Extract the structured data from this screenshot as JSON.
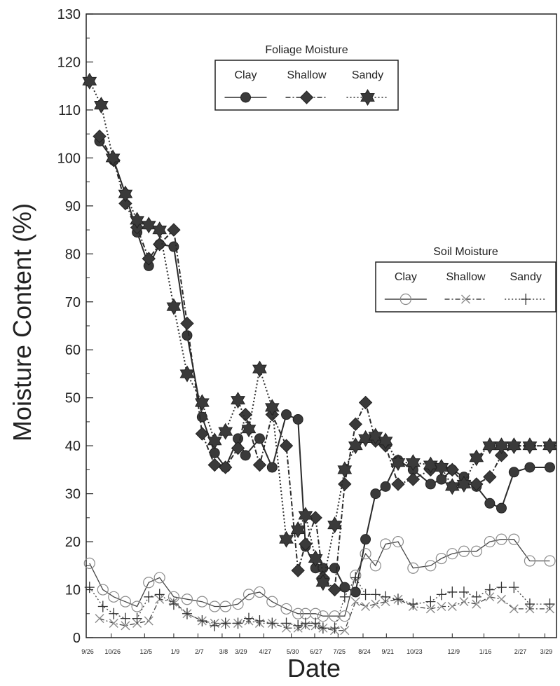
{
  "chart_data": {
    "type": "line",
    "xlabel": "Date",
    "ylabel": "Moisture Content (%)",
    "ylim": [
      0,
      130
    ],
    "yticks": [
      0,
      10,
      20,
      30,
      40,
      50,
      60,
      70,
      80,
      90,
      100,
      110,
      120,
      130
    ],
    "xlim": [
      "1994-09-26",
      "1996-04-12"
    ],
    "x_tick_labels": [
      {
        "label": "9/26",
        "date": "1994-09-26"
      },
      {
        "label": "10/26",
        "date": "1994-10-26"
      },
      {
        "label": "12/5",
        "date": "1994-12-05"
      },
      {
        "label": "1/9",
        "date": "1995-01-09"
      },
      {
        "label": "2/7",
        "date": "1995-02-07"
      },
      {
        "label": "3/8",
        "date": "1995-03-08"
      },
      {
        "label": "3/29",
        "date": "1995-03-29"
      },
      {
        "label": "4/27",
        "date": "1995-04-27"
      },
      {
        "label": "5/30",
        "date": "1995-05-30"
      },
      {
        "label": "6/27",
        "date": "1995-06-27"
      },
      {
        "label": "7/25",
        "date": "1995-07-25"
      },
      {
        "label": "8/24",
        "date": "1995-08-24"
      },
      {
        "label": "9/21",
        "date": "1995-09-21"
      },
      {
        "label": "10/23",
        "date": "1995-10-23"
      },
      {
        "label": "12/9",
        "date": "1995-12-09"
      },
      {
        "label": "1/16",
        "date": "1996-01-16"
      },
      {
        "label": "2/27",
        "date": "1996-02-27"
      },
      {
        "label": "3/29",
        "date": "1996-03-29"
      }
    ],
    "grid": false,
    "legends": [
      {
        "title": "Foliage Moisture",
        "entries": [
          "Clay",
          "Shallow",
          "Sandy"
        ],
        "placement": "top-center"
      },
      {
        "title": "Soil Moisture",
        "entries": [
          "Clay",
          "Shallow",
          "Sandy"
        ],
        "placement": "right"
      }
    ],
    "series": [
      {
        "name": "Clay",
        "group": "Foliage Moisture",
        "style": "solid",
        "marker": "circle-filled",
        "x": [
          "1994-10-12",
          "1994-10-29",
          "1994-11-12",
          "1994-11-26",
          "1994-12-10",
          "1994-12-23",
          "1995-01-09",
          "1995-01-25",
          "1995-02-12",
          "1995-02-27",
          "1995-03-12",
          "1995-03-27",
          "1995-04-05",
          "1995-04-22",
          "1995-05-07",
          "1995-05-24",
          "1995-06-07",
          "1995-06-16",
          "1995-06-28",
          "1995-07-07",
          "1995-07-21",
          "1995-08-02",
          "1995-08-15",
          "1995-08-27",
          "1995-09-08",
          "1995-09-20",
          "1995-10-05",
          "1995-10-23",
          "1995-11-13",
          "1995-11-26",
          "1995-12-09",
          "1995-12-23",
          "1996-01-07",
          "1996-01-23",
          "1996-02-06",
          "1996-02-21",
          "1996-03-11",
          "1996-04-04"
        ],
        "y": [
          103.5,
          99.5,
          92.5,
          84.5,
          77.5,
          82,
          81.5,
          63,
          46,
          38.5,
          35.5,
          41.5,
          38,
          41.5,
          35.5,
          46.5,
          45.5,
          19,
          14.5,
          14.5,
          14.5,
          10.5,
          9.5,
          20.5,
          30,
          31.5,
          37,
          35,
          32,
          33,
          35,
          33.5,
          31.5,
          28,
          27,
          34.5,
          35.5,
          35.5
        ]
      },
      {
        "name": "Shallow",
        "group": "Foliage Moisture",
        "style": "dash-dot",
        "marker": "diamond-filled",
        "x": [
          "1994-10-12",
          "1994-10-29",
          "1994-11-12",
          "1994-11-26",
          "1994-12-10",
          "1994-12-23",
          "1995-01-09",
          "1995-01-25",
          "1995-02-12",
          "1995-02-27",
          "1995-03-12",
          "1995-03-27",
          "1995-04-05",
          "1995-04-22",
          "1995-05-07",
          "1995-05-24",
          "1995-06-07",
          "1995-06-16",
          "1995-06-28",
          "1995-07-07",
          "1995-07-21",
          "1995-08-02",
          "1995-08-15",
          "1995-08-27",
          "1995-09-08",
          "1995-09-20",
          "1995-10-05",
          "1995-10-23",
          "1995-11-13",
          "1995-11-26",
          "1995-12-09",
          "1995-12-23",
          "1996-01-07",
          "1996-01-23",
          "1996-02-06",
          "1996-02-21",
          "1996-03-11",
          "1996-04-04"
        ],
        "y": [
          104.5,
          99.5,
          90.5,
          85.5,
          79,
          82,
          85,
          65.5,
          42.5,
          36,
          35.5,
          39.5,
          46.5,
          36,
          46.5,
          40,
          14,
          19.5,
          25,
          12.5,
          10,
          32,
          44.5,
          49,
          41,
          40,
          32,
          33,
          35,
          35.5,
          35,
          32,
          32,
          33.5,
          38,
          40,
          40,
          40
        ]
      },
      {
        "name": "Sandy",
        "group": "Foliage Moisture",
        "style": "dotted",
        "marker": "star-filled",
        "x": [
          "1994-09-30",
          "1994-10-14",
          "1994-10-28",
          "1994-11-12",
          "1994-11-26",
          "1994-12-10",
          "1994-12-23",
          "1995-01-09",
          "1995-01-25",
          "1995-02-12",
          "1995-02-27",
          "1995-03-12",
          "1995-03-27",
          "1995-04-09",
          "1995-04-22",
          "1995-05-07",
          "1995-05-24",
          "1995-06-07",
          "1995-06-16",
          "1995-06-28",
          "1995-07-07",
          "1995-07-21",
          "1995-08-02",
          "1995-08-15",
          "1995-08-27",
          "1995-09-08",
          "1995-09-20",
          "1995-10-05",
          "1995-10-23",
          "1995-11-13",
          "1995-11-26",
          "1995-12-09",
          "1995-12-23",
          "1996-01-07",
          "1996-01-23",
          "1996-02-06",
          "1996-02-21",
          "1996-03-11",
          "1996-04-04"
        ],
        "y": [
          116,
          111,
          100,
          92.5,
          87,
          86,
          85,
          69,
          55,
          49,
          41,
          43,
          49.5,
          43.5,
          56,
          48,
          20.5,
          22.5,
          25.5,
          16.5,
          11.5,
          23.5,
          35,
          40,
          41.5,
          42,
          41,
          36.5,
          36.5,
          36,
          35.5,
          31.5,
          32,
          37.5,
          40,
          40,
          40,
          40,
          40
        ]
      },
      {
        "name": "Clay",
        "group": "Soil Moisture",
        "style": "solid",
        "marker": "circle-open",
        "x": [
          "1994-09-30",
          "1994-10-16",
          "1994-10-29",
          "1994-11-12",
          "1994-11-26",
          "1994-12-10",
          "1994-12-23",
          "1995-01-09",
          "1995-01-25",
          "1995-02-12",
          "1995-02-27",
          "1995-03-12",
          "1995-03-27",
          "1995-04-09",
          "1995-04-22",
          "1995-05-07",
          "1995-05-24",
          "1995-06-07",
          "1995-06-16",
          "1995-06-28",
          "1995-07-07",
          "1995-07-21",
          "1995-08-02",
          "1995-08-15",
          "1995-08-27",
          "1995-09-08",
          "1995-09-20",
          "1995-10-05",
          "1995-10-23",
          "1995-11-13",
          "1995-11-26",
          "1995-12-09",
          "1995-12-23",
          "1996-01-07",
          "1996-01-23",
          "1996-02-06",
          "1996-02-21",
          "1996-03-11",
          "1996-04-04"
        ],
        "y": [
          15.5,
          10,
          8.5,
          7.5,
          6.5,
          11.5,
          12.5,
          8.5,
          8,
          7.5,
          6.5,
          6.5,
          7,
          9,
          9.5,
          7.5,
          6,
          5,
          5,
          5,
          4.5,
          4.5,
          4.5,
          13,
          17.5,
          15,
          19.5,
          20,
          14.5,
          15,
          16.5,
          17.5,
          18,
          18,
          20,
          20.5,
          20.5,
          16,
          16
        ]
      },
      {
        "name": "Shallow",
        "group": "Soil Moisture",
        "style": "dash-dot",
        "marker": "x",
        "x": [
          "1994-10-12",
          "1994-10-29",
          "1994-11-12",
          "1994-11-26",
          "1994-12-10",
          "1994-12-23",
          "1995-01-09",
          "1995-01-25",
          "1995-02-12",
          "1995-02-27",
          "1995-03-12",
          "1995-03-27",
          "1995-04-09",
          "1995-04-22",
          "1995-05-07",
          "1995-05-24",
          "1995-06-07",
          "1995-06-16",
          "1995-06-28",
          "1995-07-07",
          "1995-07-21",
          "1995-08-02",
          "1995-08-15",
          "1995-08-27",
          "1995-09-08",
          "1995-09-20",
          "1995-10-05",
          "1995-10-23",
          "1995-11-13",
          "1995-11-26",
          "1995-12-09",
          "1995-12-23",
          "1996-01-07",
          "1996-01-23",
          "1996-02-06",
          "1996-02-21",
          "1996-03-11",
          "1996-04-04"
        ],
        "y": [
          4,
          3,
          2.5,
          3,
          3.5,
          8,
          7.5,
          5,
          3.5,
          3,
          3,
          3,
          3.5,
          3,
          3,
          2,
          2,
          2.5,
          2.5,
          2,
          1.5,
          1.5,
          7.5,
          6.5,
          7,
          7.5,
          8,
          6.5,
          6,
          6.5,
          6.5,
          7.5,
          7,
          8.5,
          8,
          6,
          6,
          6
        ]
      },
      {
        "name": "Sandy",
        "group": "Soil Moisture",
        "style": "dotted",
        "marker": "plus",
        "x": [
          "1994-09-30",
          "1994-10-16",
          "1994-10-29",
          "1994-11-12",
          "1994-11-26",
          "1994-12-10",
          "1994-12-23",
          "1995-01-09",
          "1995-01-25",
          "1995-02-12",
          "1995-02-27",
          "1995-03-12",
          "1995-03-27",
          "1995-04-09",
          "1995-04-22",
          "1995-05-07",
          "1995-05-24",
          "1995-06-07",
          "1995-06-16",
          "1995-06-28",
          "1995-07-07",
          "1995-07-21",
          "1995-08-02",
          "1995-08-15",
          "1995-08-27",
          "1995-09-08",
          "1995-09-20",
          "1995-10-05",
          "1995-10-23",
          "1995-11-13",
          "1995-11-26",
          "1995-12-09",
          "1995-12-23",
          "1996-01-07",
          "1996-01-23",
          "1996-02-06",
          "1996-02-21",
          "1996-03-11",
          "1996-04-04"
        ],
        "y": [
          10.5,
          6.5,
          5,
          4,
          4,
          8.5,
          9,
          7,
          5,
          3.5,
          2.5,
          3,
          3,
          4,
          3.5,
          3,
          3,
          2.5,
          3,
          3,
          2,
          2,
          8.5,
          12.5,
          9,
          9,
          8.5,
          8,
          7,
          7.5,
          9,
          9.5,
          9.5,
          8.5,
          10,
          10.5,
          10.5,
          7,
          7
        ]
      }
    ]
  }
}
